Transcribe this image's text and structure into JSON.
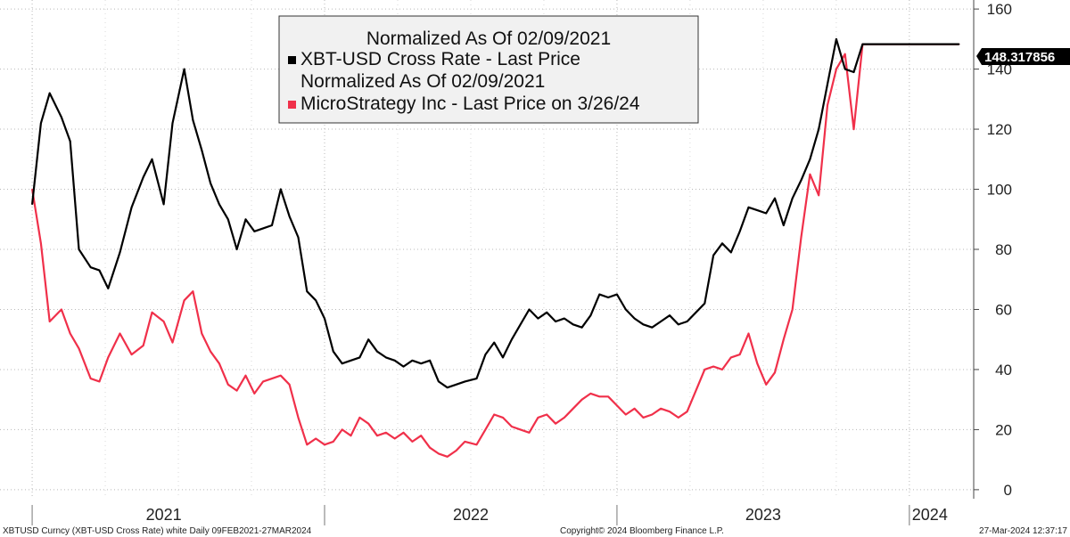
{
  "chart_data": {
    "type": "line",
    "title": "Normalized As Of 02/09/2021",
    "xlabel": "",
    "ylabel": "",
    "ylim": [
      -3,
      163
    ],
    "yticks": [
      0,
      20,
      40,
      60,
      80,
      100,
      120,
      140,
      160
    ],
    "years": [
      "2021",
      "2022",
      "2023",
      "2024"
    ],
    "x_date_range": [
      "2021-02-09",
      "2024-03-27"
    ],
    "last_value_label": "148.317856",
    "series": [
      {
        "name": "XBT-USD Cross Rate - Last Price\nNormalized As Of 02/09/2021",
        "legend_lines": [
          "XBT-USD Cross Rate - Last Price",
          "Normalized As Of 02/09/2021"
        ],
        "color": "#000000",
        "x": [
          0,
          0.03,
          0.06,
          0.1,
          0.13,
          0.16,
          0.2,
          0.23,
          0.26,
          0.3,
          0.34,
          0.38,
          0.41,
          0.45,
          0.48,
          0.52,
          0.55,
          0.58,
          0.61,
          0.64,
          0.67,
          0.7,
          0.73,
          0.76,
          0.79,
          0.82,
          0.85,
          0.88,
          0.91,
          0.94,
          0.97,
          1.0,
          1.03,
          1.06,
          1.09,
          1.12,
          1.15,
          1.18,
          1.21,
          1.24,
          1.27,
          1.3,
          1.33,
          1.36,
          1.39,
          1.42,
          1.45,
          1.48,
          1.52,
          1.55,
          1.58,
          1.61,
          1.64,
          1.67,
          1.7,
          1.73,
          1.76,
          1.79,
          1.82,
          1.85,
          1.88,
          1.91,
          1.94,
          1.97,
          2.0,
          2.03,
          2.06,
          2.09,
          2.12,
          2.15,
          2.18,
          2.21,
          2.24,
          2.27,
          2.3,
          2.33,
          2.36,
          2.39,
          2.42,
          2.45,
          2.48,
          2.51,
          2.54,
          2.57,
          2.6,
          2.63,
          2.66,
          2.69,
          2.72,
          2.75,
          2.78,
          2.81,
          2.84,
          2.87,
          2.9,
          2.93,
          2.96,
          2.99,
          3.02,
          3.05,
          3.08,
          3.11,
          3.14,
          3.17
        ],
        "values": [
          95,
          122,
          132,
          124,
          116,
          80,
          74,
          73,
          67,
          79,
          94,
          104,
          110,
          95,
          122,
          140,
          123,
          113,
          102,
          95,
          90,
          80,
          90,
          86,
          87,
          88,
          100,
          91,
          84,
          66,
          63,
          57,
          46,
          42,
          43,
          44,
          50,
          46,
          44,
          43,
          41,
          43,
          42,
          43,
          36,
          34,
          35,
          36,
          37,
          45,
          49,
          44,
          50,
          55,
          60,
          57,
          59,
          56,
          57,
          55,
          54,
          58,
          65,
          64,
          65,
          60,
          57,
          55,
          54,
          56,
          58,
          55,
          56,
          59,
          62,
          78,
          82,
          79,
          86,
          94,
          93,
          92,
          97,
          88,
          97,
          103,
          110,
          120,
          135,
          150,
          140,
          139,
          148.3,
          148.3,
          148.3,
          148.3,
          148.3,
          148.3,
          148.3,
          148.3,
          148.3,
          148.3,
          148.3,
          148.3
        ]
      },
      {
        "name": "MicroStrategy Inc - Last Price on 3/26/24",
        "legend_lines": [
          "MicroStrategy Inc - Last Price on 3/26/24"
        ],
        "color": "#f0304a",
        "x": [
          0,
          0.03,
          0.06,
          0.1,
          0.13,
          0.16,
          0.2,
          0.23,
          0.26,
          0.3,
          0.34,
          0.38,
          0.41,
          0.45,
          0.48,
          0.52,
          0.55,
          0.58,
          0.61,
          0.64,
          0.67,
          0.7,
          0.73,
          0.76,
          0.79,
          0.82,
          0.85,
          0.88,
          0.91,
          0.94,
          0.97,
          1.0,
          1.03,
          1.06,
          1.09,
          1.12,
          1.15,
          1.18,
          1.21,
          1.24,
          1.27,
          1.3,
          1.33,
          1.36,
          1.39,
          1.42,
          1.45,
          1.48,
          1.52,
          1.55,
          1.58,
          1.61,
          1.64,
          1.67,
          1.7,
          1.73,
          1.76,
          1.79,
          1.82,
          1.85,
          1.88,
          1.91,
          1.94,
          1.97,
          2.0,
          2.03,
          2.06,
          2.09,
          2.12,
          2.15,
          2.18,
          2.21,
          2.24,
          2.27,
          2.3,
          2.33,
          2.36,
          2.39,
          2.42,
          2.45,
          2.48,
          2.51,
          2.54,
          2.57,
          2.6,
          2.63,
          2.66,
          2.69,
          2.72,
          2.75,
          2.78,
          2.81,
          2.84,
          2.87,
          2.9,
          2.93,
          2.96,
          2.99,
          3.02,
          3.05,
          3.08,
          3.11,
          3.14,
          3.17
        ],
        "values": [
          100,
          82,
          56,
          60,
          52,
          47,
          37,
          36,
          44,
          52,
          45,
          48,
          59,
          56,
          49,
          63,
          66,
          52,
          46,
          42,
          35,
          33,
          38,
          32,
          36,
          37,
          38,
          35,
          24,
          15,
          17,
          15,
          16,
          20,
          18,
          24,
          22,
          18,
          19,
          17,
          19,
          16,
          18,
          14,
          12,
          11,
          13,
          16,
          15,
          20,
          25,
          24,
          21,
          20,
          19,
          24,
          25,
          22,
          24,
          27,
          30,
          32,
          31,
          31,
          28,
          25,
          27,
          24,
          25,
          27,
          26,
          24,
          26,
          33,
          40,
          41,
          40,
          44,
          45,
          52,
          42,
          35,
          39,
          50,
          60,
          84,
          105,
          98,
          128,
          140,
          145,
          120,
          148.3,
          148.3,
          148.3,
          148.3,
          148.3,
          148.3,
          148.3,
          148.3,
          148.3,
          148.3,
          148.3,
          148.3
        ]
      }
    ]
  },
  "footer": {
    "left": "XBTUSD Curncy (XBT-USD Cross Rate) white  Daily 09FEB2021-27MAR2024",
    "center": "Copyright© 2024 Bloomberg Finance L.P.",
    "right": "27-Mar-2024 12:37:17"
  }
}
